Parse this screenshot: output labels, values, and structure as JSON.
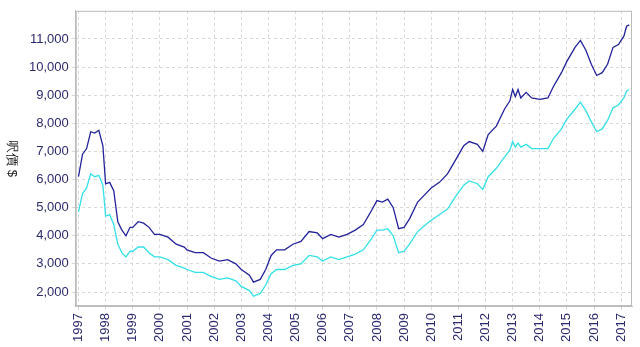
{
  "chart_data": {
    "type": "line",
    "y_label": "呎價 $",
    "x": [
      1997.0,
      1997.15,
      1997.3,
      1997.45,
      1997.6,
      1997.75,
      1997.9,
      1998.0,
      1998.15,
      1998.3,
      1998.45,
      1998.6,
      1998.75,
      1998.9,
      1999.0,
      1999.2,
      1999.4,
      1999.6,
      1999.8,
      2000.0,
      2000.3,
      2000.6,
      2000.9,
      2001.0,
      2001.3,
      2001.6,
      2001.9,
      2002.2,
      2002.5,
      2002.8,
      2003.0,
      2003.3,
      2003.45,
      2003.7,
      2003.9,
      2004.1,
      2004.3,
      2004.6,
      2004.9,
      2005.2,
      2005.5,
      2005.8,
      2006.0,
      2006.3,
      2006.6,
      2006.9,
      2007.2,
      2007.5,
      2007.8,
      2008.0,
      2008.2,
      2008.4,
      2008.6,
      2008.8,
      2009.0,
      2009.2,
      2009.5,
      2009.8,
      2010.0,
      2010.3,
      2010.6,
      2010.9,
      2011.2,
      2011.4,
      2011.7,
      2011.9,
      2012.1,
      2012.4,
      2012.7,
      2012.9,
      2013.0,
      2013.1,
      2013.2,
      2013.3,
      2013.5,
      2013.7,
      2014.0,
      2014.3,
      2014.5,
      2014.8,
      2015.0,
      2015.3,
      2015.5,
      2015.7,
      2015.9,
      2016.1,
      2016.3,
      2016.5,
      2016.7,
      2016.9,
      2017.1,
      2017.2,
      2017.3
    ],
    "series": [
      {
        "color": "#22229a",
        "values": [
          6100,
          6900,
          7100,
          7700,
          7650,
          7750,
          7200,
          5850,
          5900,
          5600,
          4500,
          4200,
          4000,
          4300,
          4300,
          4500,
          4450,
          4300,
          4050,
          4050,
          3950,
          3700,
          3600,
          3500,
          3400,
          3400,
          3200,
          3100,
          3150,
          3000,
          2800,
          2600,
          2350,
          2450,
          2800,
          3300,
          3500,
          3500,
          3700,
          3800,
          4150,
          4100,
          3900,
          4050,
          3950,
          4050,
          4200,
          4400,
          4900,
          5250,
          5200,
          5300,
          5000,
          4250,
          4300,
          4600,
          5200,
          5500,
          5700,
          5900,
          6200,
          6700,
          7200,
          7350,
          7250,
          7000,
          7600,
          7900,
          8500,
          8800,
          9200,
          8950,
          9200,
          8900,
          9100,
          8900,
          8850,
          8900,
          9300,
          9800,
          10200,
          10700,
          10950,
          10600,
          10100,
          9700,
          9800,
          10100,
          10700,
          10800,
          11100,
          11450,
          11500
        ]
      },
      {
        "color": "#33e0e8",
        "values": [
          4850,
          5500,
          5700,
          6200,
          6100,
          6150,
          5800,
          4700,
          4750,
          4400,
          3700,
          3400,
          3250,
          3450,
          3450,
          3600,
          3600,
          3400,
          3250,
          3250,
          3150,
          2950,
          2850,
          2800,
          2700,
          2700,
          2550,
          2450,
          2500,
          2400,
          2200,
          2050,
          1850,
          1950,
          2250,
          2650,
          2800,
          2800,
          2950,
          3000,
          3300,
          3250,
          3100,
          3250,
          3150,
          3250,
          3350,
          3500,
          3900,
          4200,
          4200,
          4250,
          4000,
          3400,
          3450,
          3700,
          4150,
          4400,
          4550,
          4750,
          4950,
          5400,
          5800,
          5950,
          5850,
          5650,
          6100,
          6400,
          6800,
          7050,
          7350,
          7150,
          7300,
          7150,
          7250,
          7100,
          7100,
          7100,
          7450,
          7800,
          8150,
          8500,
          8750,
          8450,
          8050,
          7700,
          7800,
          8100,
          8550,
          8650,
          8900,
          9150,
          9200
        ]
      }
    ],
    "xlim": [
      1996.9,
      2017.4
    ],
    "xticks": [
      1997,
      1998,
      1999,
      2000,
      2001,
      2002,
      2003,
      2004,
      2005,
      2006,
      2007,
      2008,
      2009,
      2010,
      2011,
      2012,
      2013,
      2014,
      2015,
      2016,
      2017
    ],
    "ylim": [
      1500,
      12000
    ],
    "yticks": [
      {
        "value": 2000,
        "label": "2,000"
      },
      {
        "value": 3000,
        "label": "3,000"
      },
      {
        "value": 4000,
        "label": "4,000"
      },
      {
        "value": 5000,
        "label": "5,000"
      },
      {
        "value": 6000,
        "label": "6,000"
      },
      {
        "value": 7000,
        "label": "7,000"
      },
      {
        "value": 8000,
        "label": "8,000"
      },
      {
        "value": 9000,
        "label": "9,000"
      },
      {
        "value": 10000,
        "label": "10,000"
      },
      {
        "value": 11000,
        "label": "11,000"
      }
    ],
    "grid": true
  }
}
